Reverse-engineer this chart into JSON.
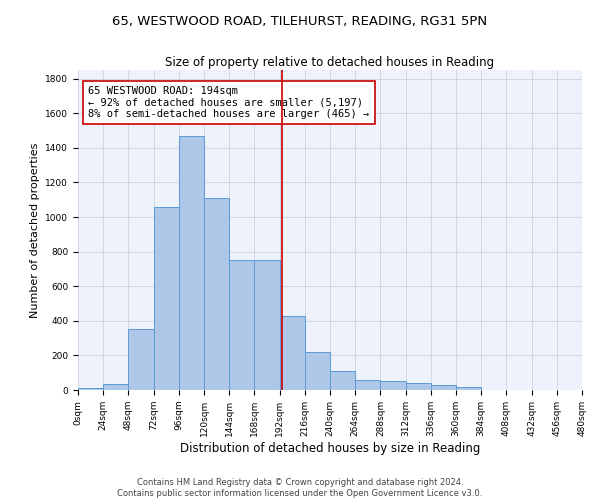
{
  "title_line1": "65, WESTWOOD ROAD, TILEHURST, READING, RG31 5PN",
  "title_line2": "Size of property relative to detached houses in Reading",
  "xlabel": "Distribution of detached houses by size in Reading",
  "ylabel": "Number of detached properties",
  "bar_values": [
    10,
    35,
    350,
    1060,
    1470,
    1110,
    750,
    750,
    430,
    220,
    110,
    55,
    50,
    40,
    30,
    20,
    0,
    0,
    0,
    0
  ],
  "bin_edges": [
    0,
    24,
    48,
    72,
    96,
    120,
    144,
    168,
    192,
    216,
    240,
    264,
    288,
    312,
    336,
    360,
    384,
    408,
    432,
    456,
    480
  ],
  "bar_color": "#aec6e8",
  "bar_edgecolor": "#5b9bd5",
  "vline_x": 194,
  "vline_color": "#cc0000",
  "annotation_line1": "65 WESTWOOD ROAD: 194sqm",
  "annotation_line2": "← 92% of detached houses are smaller (5,197)",
  "annotation_line3": "8% of semi-detached houses are larger (465) →",
  "annotation_box_color": "#cc0000",
  "ylim": [
    0,
    1850
  ],
  "yticks": [
    0,
    200,
    400,
    600,
    800,
    1000,
    1200,
    1400,
    1600,
    1800
  ],
  "grid_color": "#d0d8e8",
  "bg_color": "#eef2fa",
  "footer_line1": "Contains HM Land Registry data © Crown copyright and database right 2024.",
  "footer_line2": "Contains public sector information licensed under the Open Government Licence v3.0.",
  "title_fontsize": 9.5,
  "subtitle_fontsize": 8.5,
  "axis_label_fontsize": 8,
  "tick_fontsize": 6.5,
  "annotation_fontsize": 7.5,
  "footer_fontsize": 6.0
}
